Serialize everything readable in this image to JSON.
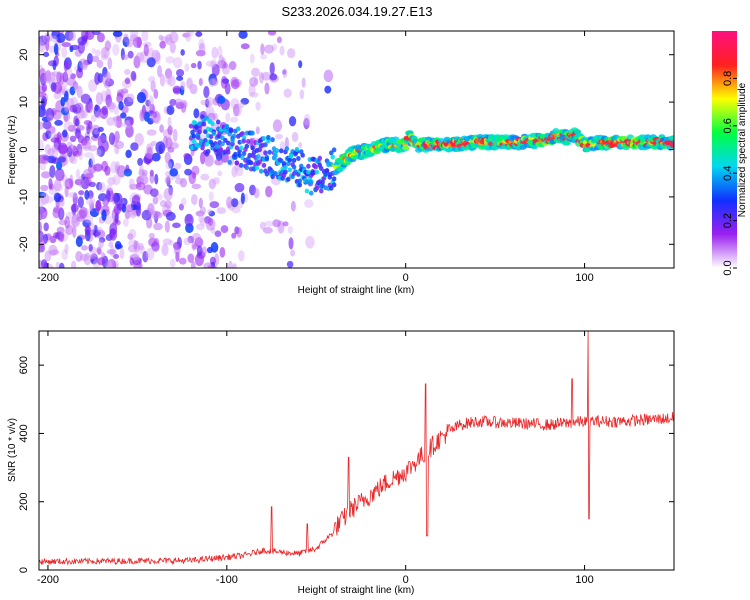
{
  "title": "S233.2026.034.19.27.E13",
  "chart_data": [
    {
      "type": "heatmap",
      "name": "spectrogram",
      "xlabel": "Height of straight line (km)",
      "ylabel": "Frequency (Hz)",
      "xlim": [
        -205,
        150
      ],
      "ylim": [
        -25,
        25
      ],
      "xticks": [
        -200,
        -100,
        0,
        100
      ],
      "yticks": [
        -20,
        -10,
        0,
        10,
        20
      ],
      "colorbar": {
        "label": "Normalized spectral amplitude",
        "range": [
          0,
          1
        ],
        "ticks": [
          0.0,
          0.2,
          0.4,
          0.6,
          0.8
        ],
        "colors": [
          "#ffffff",
          "#9a20f0",
          "#1030ff",
          "#00d8f0",
          "#00ff40",
          "#ffff00",
          "#ff2020",
          "#ff1080"
        ]
      },
      "ridge": {
        "x": [
          -110,
          -100,
          -80,
          -65,
          -55,
          -45,
          -40,
          -30,
          -20,
          -10,
          0,
          2,
          5,
          20,
          40,
          60,
          80,
          85,
          90,
          95,
          100,
          110,
          150
        ],
        "y": [
          3,
          1,
          -1,
          -3,
          -5,
          -6,
          -4,
          -1,
          0,
          1,
          1,
          3,
          1,
          1,
          1.5,
          1.5,
          2,
          3,
          2.5,
          3,
          1,
          1.5,
          1.5
        ]
      }
    },
    {
      "type": "line",
      "name": "snr",
      "xlabel": "Height of straight line (km)",
      "ylabel": "SNR (10 * v/v)",
      "xlim": [
        -205,
        150
      ],
      "ylim": [
        0,
        700
      ],
      "xticks": [
        -200,
        -100,
        0,
        100
      ],
      "yticks": [
        0,
        200,
        400,
        600
      ],
      "color": "#e8282a",
      "trend": {
        "x": [
          -205,
          -120,
          -90,
          -80,
          -60,
          -50,
          -40,
          -30,
          -20,
          -10,
          0,
          10,
          20,
          30,
          40,
          60,
          80,
          100,
          120,
          150
        ],
        "y": [
          22,
          25,
          40,
          55,
          45,
          60,
          110,
          170,
          210,
          250,
          280,
          330,
          380,
          420,
          430,
          425,
          420,
          430,
          430,
          440
        ]
      },
      "spikes": [
        {
          "x": -75,
          "y": 185
        },
        {
          "x": -55,
          "y": 135
        },
        {
          "x": -32,
          "y": 330
        },
        {
          "x": 11,
          "y": 545
        },
        {
          "x": 12,
          "y": 100
        },
        {
          "x": 93,
          "y": 560
        },
        {
          "x": 102,
          "y": 700
        },
        {
          "x": 102.5,
          "y": 150
        }
      ]
    }
  ]
}
